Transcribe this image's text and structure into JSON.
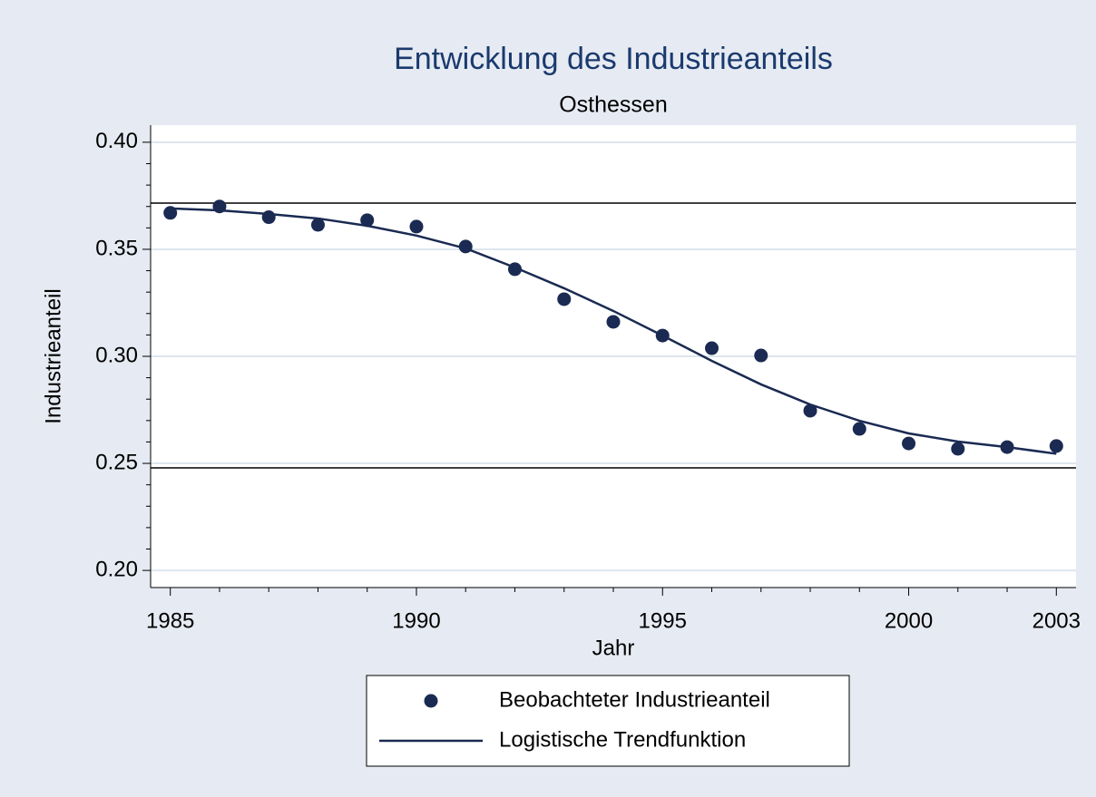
{
  "chart_data": {
    "type": "scatter",
    "title": "Entwicklung des Industrieanteils",
    "subtitle": "Osthessen",
    "x_label": "Jahr",
    "y_label": "Industrieanteil",
    "xlim": [
      1984.6,
      2003.4
    ],
    "ylim": [
      0.192,
      0.408
    ],
    "xticks": [
      1985,
      1990,
      1995,
      2000,
      2003
    ],
    "xminorticks": [
      1986,
      1987,
      1988,
      1989,
      1991,
      1992,
      1993,
      1994,
      1996,
      1997,
      1998,
      1999,
      2001,
      2002
    ],
    "yticks": [
      {
        "value": 0.2,
        "label": "0.20"
      },
      {
        "value": 0.25,
        "label": "0.25"
      },
      {
        "value": 0.3,
        "label": "0.30"
      },
      {
        "value": 0.35,
        "label": "0.35"
      },
      {
        "value": 0.4,
        "label": "0.40"
      }
    ],
    "yminorticks": [
      0.21,
      0.22,
      0.23,
      0.24,
      0.26,
      0.27,
      0.28,
      0.29,
      0.31,
      0.32,
      0.33,
      0.34,
      0.36,
      0.37,
      0.38,
      0.39
    ],
    "grid": true,
    "hlines": [
      0.3716,
      0.2479
    ],
    "x": [
      1985,
      1986,
      1987,
      1988,
      1989,
      1990,
      1991,
      1992,
      1993,
      1994,
      1995,
      1996,
      1997,
      1998,
      1999,
      2000,
      2001,
      2002,
      2003
    ],
    "series": [
      {
        "name": "Beobachteter Industrieanteil",
        "type": "scatter",
        "color": "#1a2a52",
        "values": [
          0.367,
          0.37,
          0.365,
          0.3614,
          0.3636,
          0.3606,
          0.3513,
          0.3407,
          0.3267,
          0.3161,
          0.3097,
          0.3038,
          0.3004,
          0.2746,
          0.2661,
          0.2593,
          0.2568,
          0.2576,
          0.2581
        ]
      },
      {
        "name": "Logistische Trendfunktion",
        "type": "line",
        "color": "#1a2a52",
        "values": [
          0.3691,
          0.3682,
          0.3665,
          0.3644,
          0.361,
          0.3564,
          0.3504,
          0.3415,
          0.3318,
          0.3212,
          0.3097,
          0.2979,
          0.2869,
          0.2775,
          0.2699,
          0.264,
          0.2602,
          0.2576,
          0.2545
        ]
      }
    ]
  }
}
